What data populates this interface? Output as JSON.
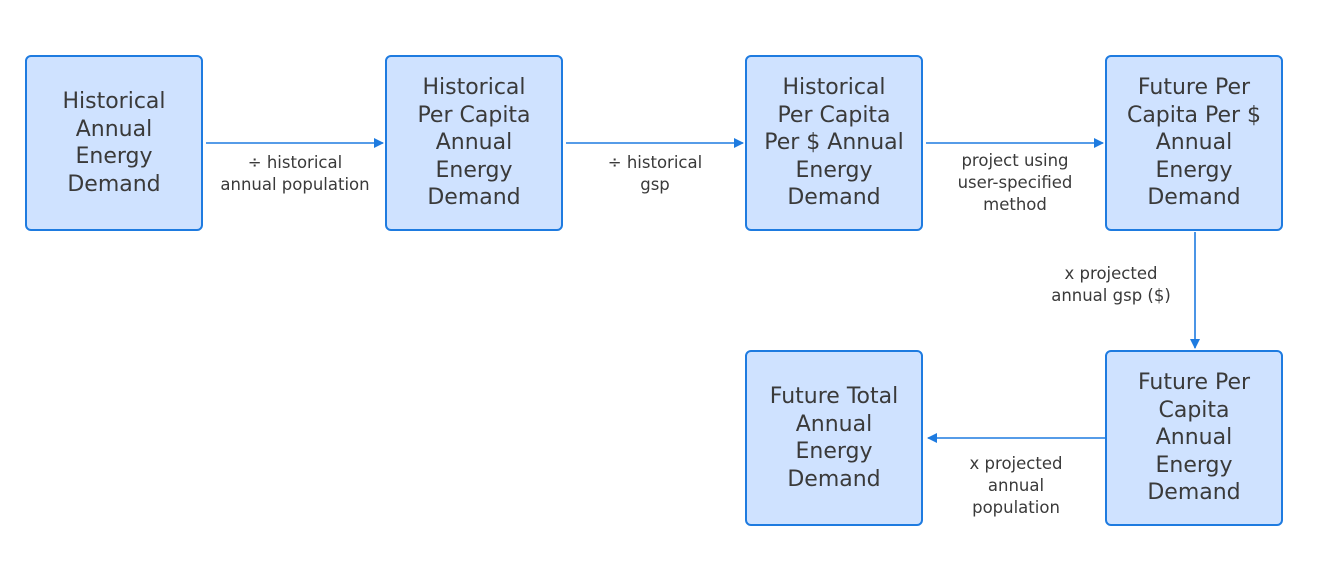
{
  "colors": {
    "node_fill": "#cfe2ff",
    "node_border": "#1e7be0",
    "arrow": "#1e7be0",
    "text": "#3a3a3a"
  },
  "nodes": {
    "historical_total": "Historical\nAnnual\nEnergy\nDemand",
    "historical_per_capita": "Historical\nPer Capita\nAnnual\nEnergy\nDemand",
    "historical_per_capita_per_dollar": "Historical\nPer Capita\nPer $ Annual\nEnergy\nDemand",
    "future_per_capita_per_dollar": "Future Per\nCapita Per $\nAnnual\nEnergy\nDemand",
    "future_per_capita": "Future Per\nCapita\nAnnual\nEnergy\nDemand",
    "future_total": "Future Total\nAnnual\nEnergy\nDemand"
  },
  "edges": {
    "divide_population": "÷ historical\nannual population",
    "divide_gsp": "÷ historical\ngsp",
    "project_method": "project using\nuser-specified\nmethod",
    "multiply_gsp": "x projected\nannual gsp ($)",
    "multiply_population": "x projected\nannual\npopulation"
  }
}
